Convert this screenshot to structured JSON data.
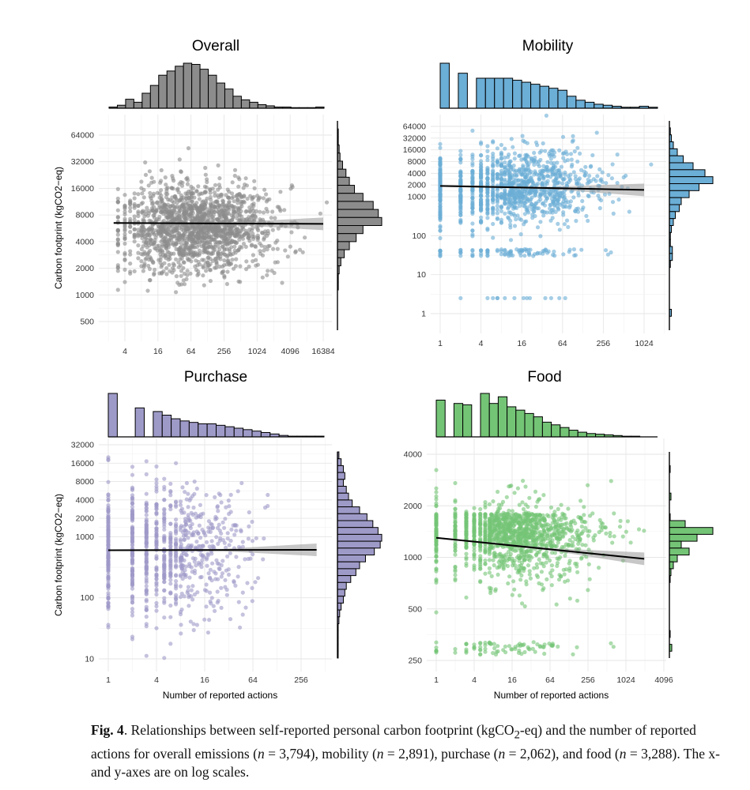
{
  "chart_data": [
    {
      "id": "overall",
      "type": "scatter",
      "title": "Overall",
      "xlabel": "",
      "ylabel": "Carbon footprint (kgCO2−eq)",
      "x_scale": "log",
      "y_scale": "log",
      "x_ticks": [
        4,
        16,
        64,
        256,
        1024,
        4096,
        16384
      ],
      "y_ticks": [
        64000,
        32000,
        16000,
        8000,
        4000,
        2000,
        1000,
        500
      ],
      "color": "#8c8c8c",
      "hist_color": "#8c8c8c",
      "n": 3794,
      "fit_line": {
        "x": [
          2.5,
          16384
        ],
        "y": [
          6500,
          6350
        ]
      },
      "top_histogram": [
        2,
        5,
        15,
        10,
        25,
        38,
        55,
        62,
        70,
        75,
        73,
        65,
        55,
        42,
        32,
        20,
        14,
        10,
        6,
        4,
        2,
        2,
        1,
        1,
        1,
        2
      ],
      "right_histogram": [
        0,
        1,
        1,
        2,
        3,
        6,
        10,
        14,
        20,
        30,
        42,
        48,
        52,
        30,
        22,
        14,
        8,
        4,
        2,
        1,
        1,
        0,
        0,
        0,
        0,
        0
      ]
    },
    {
      "id": "mobility",
      "type": "scatter",
      "title": "Mobility",
      "xlabel": "",
      "ylabel": "",
      "x_scale": "log",
      "y_scale": "log",
      "x_ticks": [
        1,
        4,
        16,
        64,
        256,
        1024
      ],
      "y_ticks": [
        64000,
        32000,
        16000,
        8000,
        4000,
        2000,
        1000,
        100,
        10,
        1
      ],
      "color": "#6baed6",
      "hist_color": "#6baed6",
      "n": 2891,
      "fit_line": {
        "x": [
          1,
          1024
        ],
        "y": [
          1900,
          1500
        ]
      },
      "top_histogram": [
        45,
        0,
        35,
        0,
        30,
        30,
        30,
        30,
        28,
        26,
        24,
        22,
        20,
        18,
        12,
        8,
        6,
        4,
        3,
        2,
        1,
        1,
        2,
        1
      ],
      "right_histogram": [
        0,
        1,
        2,
        4,
        8,
        14,
        24,
        36,
        44,
        30,
        20,
        12,
        10,
        6,
        4,
        2,
        1,
        1,
        3,
        3,
        1,
        0,
        0,
        0,
        0,
        0,
        0,
        2,
        0,
        0
      ]
    },
    {
      "id": "purchase",
      "type": "scatter",
      "title": "Purchase",
      "xlabel": "Number of reported actions",
      "ylabel": "Carbon footprint (kgCO2−eq)",
      "x_scale": "log",
      "y_scale": "log",
      "x_ticks": [
        1,
        4,
        16,
        64,
        256
      ],
      "y_ticks": [
        32000,
        16000,
        8000,
        4000,
        2000,
        1000,
        100,
        10
      ],
      "color": "#9e9ac8",
      "hist_color": "#9e9ac8",
      "n": 2062,
      "fit_line": {
        "x": [
          1,
          400
        ],
        "y": [
          600,
          610
        ]
      },
      "top_histogram": [
        60,
        0,
        0,
        40,
        0,
        35,
        30,
        25,
        22,
        20,
        18,
        18,
        16,
        14,
        12,
        10,
        8,
        6,
        4,
        2,
        1,
        1,
        1,
        1
      ],
      "right_histogram": [
        2,
        5,
        8,
        10,
        8,
        12,
        15,
        20,
        30,
        40,
        48,
        55,
        60,
        58,
        50,
        38,
        30,
        25,
        18,
        12,
        10,
        8,
        5,
        3,
        2,
        1,
        1,
        1,
        1,
        1
      ]
    },
    {
      "id": "food",
      "type": "scatter",
      "title": "Food",
      "xlabel": "Number of reported actions",
      "ylabel": "",
      "x_scale": "log",
      "y_scale": "log",
      "x_ticks": [
        1,
        4,
        16,
        64,
        256,
        1024,
        4096
      ],
      "y_ticks": [
        4000,
        2000,
        1000,
        500,
        250
      ],
      "color": "#74c476",
      "hist_color": "#74c476",
      "n": 3288,
      "fit_line": {
        "x": [
          1,
          2000
        ],
        "y": [
          1300,
          980
        ]
      },
      "top_histogram": [
        55,
        0,
        50,
        48,
        0,
        65,
        50,
        60,
        45,
        40,
        35,
        30,
        22,
        18,
        14,
        10,
        7,
        5,
        4,
        3,
        2,
        1,
        1,
        0,
        0
      ],
      "right_histogram": [
        0,
        0,
        1,
        0,
        0,
        0,
        2,
        0,
        0,
        1,
        20,
        55,
        35,
        15,
        25,
        10,
        5,
        2,
        1,
        0,
        0,
        0,
        0,
        0,
        0,
        0,
        1,
        0,
        3,
        0
      ]
    }
  ],
  "caption": {
    "label": "Fig. 4",
    "t1": ". Relationships between self-reported personal carbon footprint (kgCO",
    "sub": "2",
    "t2": "-eq) and the number of reported actions for overall emissions (",
    "n": "n",
    "t3": " = 3,794), mobility (",
    "t4": " = 2,891), purchase (",
    "t5": " = 2,062), and food (",
    "t6": " = 3,288). The x- and y-axes are on log scales."
  }
}
